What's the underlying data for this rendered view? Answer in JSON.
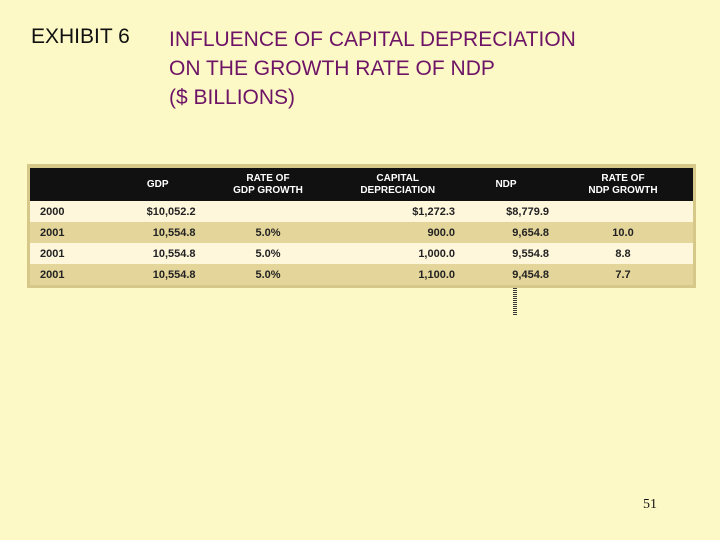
{
  "exhibit": {
    "label": "EXHIBIT 6",
    "title_lines": [
      "INFLUENCE OF CAPITAL DEPRECIATION",
      "ON THE GROWTH RATE OF NDP",
      "($ BILLIONS)"
    ]
  },
  "table": {
    "headers": [
      "",
      "GDP",
      "RATE OF GDP GROWTH",
      "CAPITAL DEPRECIATION",
      "NDP",
      "RATE OF NDP GROWTH"
    ],
    "header_lines": [
      [
        ""
      ],
      [
        "GDP"
      ],
      [
        "RATE OF",
        "GDP GROWTH"
      ],
      [
        "CAPITAL",
        "DEPRECIATION"
      ],
      [
        "NDP"
      ],
      [
        "RATE OF",
        "NDP GROWTH"
      ]
    ],
    "rows": [
      [
        "2000",
        "$10,052.2",
        "",
        "$1,272.3",
        "$8,779.9",
        ""
      ],
      [
        "2001",
        "10,554.8",
        "5.0%",
        "900.0",
        "9,654.8",
        "10.0"
      ],
      [
        "2001",
        "10,554.8",
        "5.0%",
        "1,000.0",
        "9,554.8",
        "8.8"
      ],
      [
        "2001",
        "10,554.8",
        "5.0%",
        "1,100.0",
        "9,454.8",
        "7.7"
      ]
    ]
  },
  "page_number": "51",
  "colors": {
    "background": "#fcf9c6",
    "title": "#6e1466",
    "table_header_bg": "#111111",
    "row_light": "#fff7dc",
    "row_tan": "#e4d59a"
  }
}
